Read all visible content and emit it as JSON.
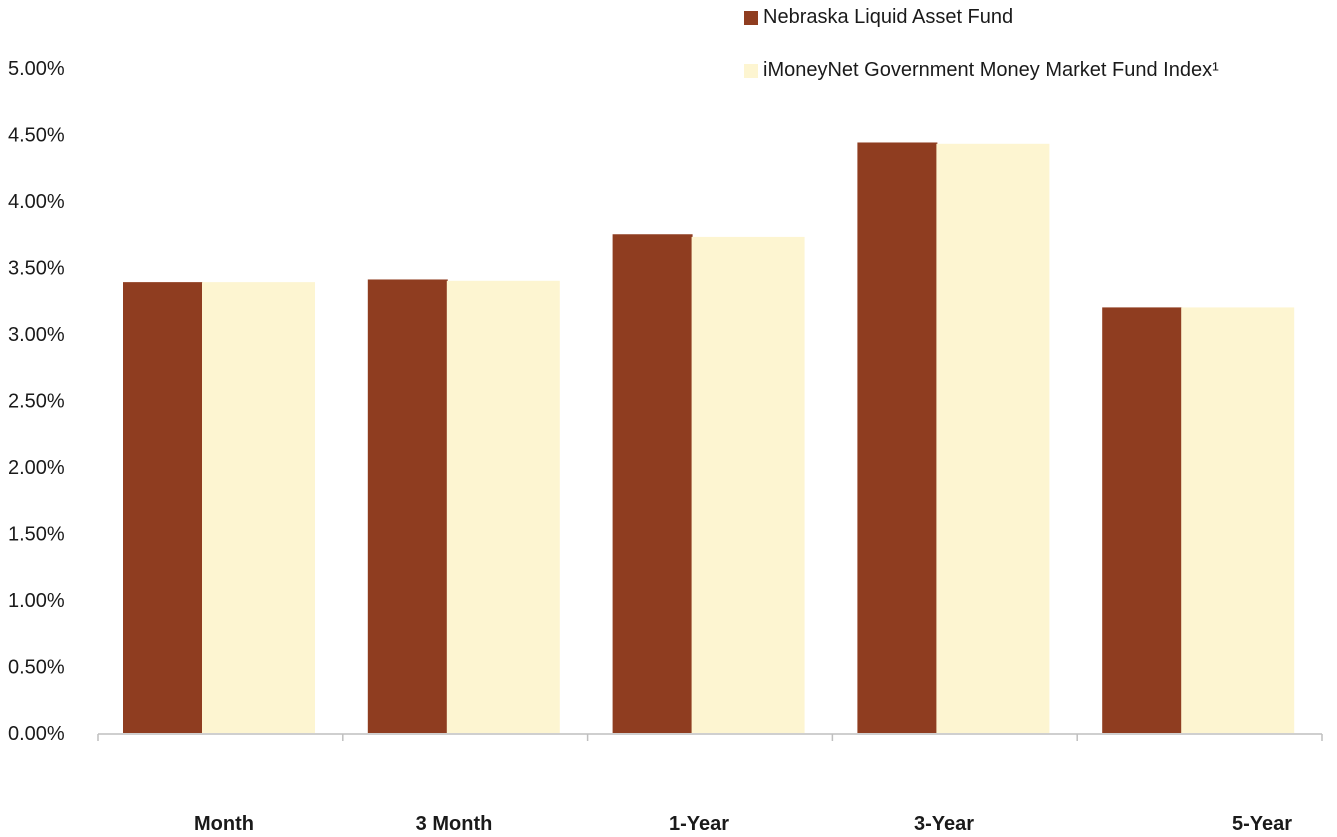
{
  "chart_data": {
    "type": "bar",
    "categories": [
      "Month",
      "3 Month",
      "1-Year",
      "3-Year",
      "5-Year"
    ],
    "series": [
      {
        "name": "Nebraska Liquid Asset Fund",
        "color": "#8F3D20",
        "values": [
          3.39,
          3.41,
          3.75,
          4.44,
          3.2
        ]
      },
      {
        "name": "iMoneyNet Government Money Market Fund Index¹",
        "color": "#FDF5D1",
        "values": [
          3.39,
          3.4,
          3.73,
          4.43,
          3.2
        ]
      }
    ],
    "ylim": [
      0,
      5
    ],
    "yticks": [
      "0.00%",
      "0.50%",
      "1.00%",
      "1.50%",
      "2.00%",
      "2.50%",
      "3.00%",
      "3.50%",
      "4.00%",
      "4.50%",
      "5.00%"
    ],
    "title": "",
    "xlabel": "",
    "ylabel": "",
    "grid": false,
    "legend_position": "top-right"
  }
}
